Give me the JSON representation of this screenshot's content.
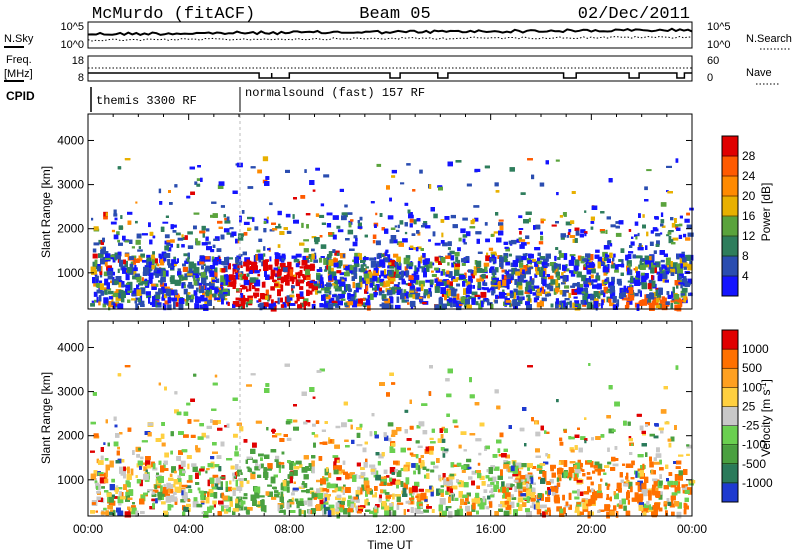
{
  "header": {
    "station": "McMurdo (fitACF)",
    "beam": "Beam 05",
    "date": "02/Dec/2011"
  },
  "noise_panel": {
    "left_label": "N.Sky",
    "right_label": "N.Search",
    "left_ticks": [
      "10^5",
      "10^0"
    ],
    "right_ticks": [
      "10^5",
      "10^0"
    ]
  },
  "freq_panel": {
    "left_label_1": "Freq.",
    "left_label_2": "[MHz]",
    "right_label": "Nave",
    "left_ticks": [
      "18",
      "8"
    ],
    "right_ticks": [
      "60",
      "0"
    ]
  },
  "cpid": {
    "label": "CPID",
    "segments": [
      {
        "name": "themis 3300 RF",
        "start_hour": 0
      },
      {
        "name": "normalsound (fast) 157 RF",
        "start_hour": 6
      }
    ]
  },
  "chart_data": [
    {
      "type": "heatmap",
      "panel": "power",
      "xlabel": "",
      "ylabel": "Slant Range [km]",
      "xlim_hours": [
        0,
        24
      ],
      "ylim": [
        180,
        4600
      ],
      "y_ticks": [
        1000,
        2000,
        3000,
        4000
      ],
      "colorbar_label": "Power [dB]",
      "colorbar_ticks": [
        "4",
        "8",
        "12",
        "16",
        "20",
        "24",
        "28"
      ],
      "colorbar_colors": [
        "#1414ff",
        "#2a4db0",
        "#2e7d5c",
        "#5aa33c",
        "#e8b000",
        "#ff8a00",
        "#ff5a00",
        "#e00000"
      ]
    },
    {
      "type": "heatmap",
      "panel": "velocity",
      "xlabel": "Time UT",
      "ylabel": "Slant Range [km]",
      "xlim_hours": [
        0,
        24
      ],
      "ylim": [
        180,
        4600
      ],
      "y_ticks": [
        1000,
        2000,
        3000,
        4000
      ],
      "x_ticks": [
        "00:00",
        "04:00",
        "08:00",
        "12:00",
        "16:00",
        "20:00",
        "00:00"
      ],
      "colorbar_label": "Velocity [m s",
      "colorbar_label_sup": "-1",
      "colorbar_ticks": [
        "1000",
        "500",
        "100",
        "25",
        "-25",
        "-100",
        "-500",
        "-1000"
      ],
      "colorbar_colors": [
        "#1e3ad0",
        "#2a7a5a",
        "#4aa040",
        "#6ad050",
        "#c8c8c8",
        "#ffd040",
        "#ffa020",
        "#ff7000",
        "#e00000"
      ]
    }
  ]
}
